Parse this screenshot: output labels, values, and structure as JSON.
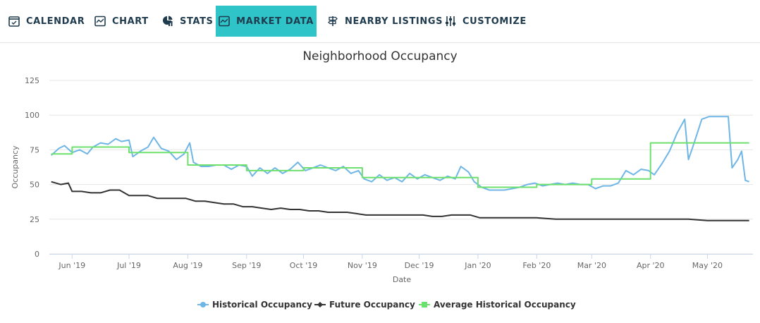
{
  "tabs": [
    {
      "label": "CALENDAR",
      "icon": "calendar-icon",
      "active": false
    },
    {
      "label": "CHART",
      "icon": "chart-icon",
      "active": false
    },
    {
      "label": "STATS",
      "icon": "stats-icon",
      "active": false
    },
    {
      "label": "MARKET DATA",
      "icon": "market-data-icon",
      "active": true
    },
    {
      "label": "NEARBY LISTINGS",
      "icon": "signpost-icon",
      "active": false
    },
    {
      "label": "CUSTOMIZE",
      "icon": "sliders-icon",
      "active": false
    }
  ],
  "colors": {
    "accent": "#2fc5c8",
    "tab_text": "#1f3b4d",
    "historical": "#6fb6e6",
    "future": "#333333",
    "average": "#6ee06e"
  },
  "chart_data": {
    "type": "line",
    "title": "Neighborhood Occupancy",
    "xlabel": "Date",
    "ylabel": "Occupancy",
    "ylim": [
      0,
      125
    ],
    "yticks": [
      0,
      25,
      50,
      75,
      100,
      125
    ],
    "xlim": [
      "2019-05-20",
      "2020-05-25"
    ],
    "xticks": [
      {
        "date": "2019-06-01",
        "label": "Jun '19"
      },
      {
        "date": "2019-07-01",
        "label": "Jul '19"
      },
      {
        "date": "2019-08-01",
        "label": "Aug '19"
      },
      {
        "date": "2019-09-01",
        "label": "Sep '19"
      },
      {
        "date": "2019-10-01",
        "label": "Oct '19"
      },
      {
        "date": "2019-11-01",
        "label": "Nov '19"
      },
      {
        "date": "2019-12-01",
        "label": "Dec '19"
      },
      {
        "date": "2020-01-01",
        "label": "Jan '20"
      },
      {
        "date": "2020-02-01",
        "label": "Feb '20"
      },
      {
        "date": "2020-03-01",
        "label": "Mar '20"
      },
      {
        "date": "2020-04-01",
        "label": "Apr '20"
      },
      {
        "date": "2020-05-01",
        "label": "May '20"
      }
    ],
    "grid": true,
    "legend_position": "bottom",
    "series": [
      {
        "name": "Historical Occupancy",
        "points": [
          [
            "2019-05-21",
            71
          ],
          [
            "2019-05-25",
            76
          ],
          [
            "2019-05-28",
            78
          ],
          [
            "2019-06-01",
            73
          ],
          [
            "2019-06-05",
            75
          ],
          [
            "2019-06-09",
            72
          ],
          [
            "2019-06-12",
            77
          ],
          [
            "2019-06-16",
            80
          ],
          [
            "2019-06-20",
            79
          ],
          [
            "2019-06-24",
            83
          ],
          [
            "2019-06-27",
            81
          ],
          [
            "2019-07-01",
            82
          ],
          [
            "2019-07-03",
            70
          ],
          [
            "2019-07-07",
            74
          ],
          [
            "2019-07-11",
            77
          ],
          [
            "2019-07-14",
            84
          ],
          [
            "2019-07-18",
            76
          ],
          [
            "2019-07-22",
            74
          ],
          [
            "2019-07-26",
            68
          ],
          [
            "2019-07-30",
            72
          ],
          [
            "2019-08-02",
            80
          ],
          [
            "2019-08-04",
            66
          ],
          [
            "2019-08-08",
            63
          ],
          [
            "2019-08-12",
            63
          ],
          [
            "2019-08-16",
            64
          ],
          [
            "2019-08-20",
            64
          ],
          [
            "2019-08-24",
            61
          ],
          [
            "2019-08-28",
            64
          ],
          [
            "2019-09-01",
            63
          ],
          [
            "2019-09-04",
            56
          ],
          [
            "2019-09-08",
            62
          ],
          [
            "2019-09-12",
            58
          ],
          [
            "2019-09-16",
            62
          ],
          [
            "2019-09-20",
            58
          ],
          [
            "2019-09-24",
            61
          ],
          [
            "2019-09-28",
            66
          ],
          [
            "2019-10-02",
            60
          ],
          [
            "2019-10-06",
            62
          ],
          [
            "2019-10-10",
            64
          ],
          [
            "2019-10-14",
            62
          ],
          [
            "2019-10-18",
            60
          ],
          [
            "2019-10-22",
            63
          ],
          [
            "2019-10-26",
            58
          ],
          [
            "2019-10-30",
            60
          ],
          [
            "2019-11-02",
            54
          ],
          [
            "2019-11-06",
            52
          ],
          [
            "2019-11-10",
            57
          ],
          [
            "2019-11-14",
            53
          ],
          [
            "2019-11-18",
            55
          ],
          [
            "2019-11-22",
            52
          ],
          [
            "2019-11-26",
            58
          ],
          [
            "2019-11-30",
            54
          ],
          [
            "2019-12-04",
            57
          ],
          [
            "2019-12-08",
            55
          ],
          [
            "2019-12-12",
            53
          ],
          [
            "2019-12-16",
            56
          ],
          [
            "2019-12-20",
            54
          ],
          [
            "2019-12-23",
            63
          ],
          [
            "2019-12-27",
            59
          ],
          [
            "2019-12-30",
            52
          ],
          [
            "2020-01-03",
            48
          ],
          [
            "2020-01-07",
            46
          ],
          [
            "2020-01-11",
            46
          ],
          [
            "2020-01-15",
            46
          ],
          [
            "2020-01-19",
            47
          ],
          [
            "2020-01-23",
            48
          ],
          [
            "2020-01-27",
            50
          ],
          [
            "2020-01-31",
            51
          ],
          [
            "2020-02-04",
            49
          ],
          [
            "2020-02-08",
            50
          ],
          [
            "2020-02-12",
            51
          ],
          [
            "2020-02-16",
            50
          ],
          [
            "2020-02-20",
            51
          ],
          [
            "2020-02-24",
            50
          ],
          [
            "2020-02-28",
            50
          ],
          [
            "2020-03-03",
            47
          ],
          [
            "2020-03-07",
            49
          ],
          [
            "2020-03-11",
            49
          ],
          [
            "2020-03-15",
            51
          ],
          [
            "2020-03-19",
            60
          ],
          [
            "2020-03-23",
            57
          ],
          [
            "2020-03-27",
            61
          ],
          [
            "2020-03-31",
            60
          ],
          [
            "2020-04-03",
            57
          ],
          [
            "2020-04-07",
            65
          ],
          [
            "2020-04-11",
            74
          ],
          [
            "2020-04-15",
            87
          ],
          [
            "2020-04-19",
            97
          ],
          [
            "2020-04-21",
            68
          ],
          [
            "2020-04-24",
            80
          ],
          [
            "2020-04-28",
            97
          ],
          [
            "2020-05-02",
            99
          ],
          [
            "2020-05-08",
            99
          ],
          [
            "2020-05-12",
            99
          ],
          [
            "2020-05-14",
            62
          ],
          [
            "2020-05-17",
            68
          ],
          [
            "2020-05-19",
            74
          ],
          [
            "2020-05-21",
            53
          ],
          [
            "2020-05-23",
            52
          ]
        ]
      },
      {
        "name": "Future Occupancy",
        "points": [
          [
            "2019-05-21",
            52
          ],
          [
            "2019-05-26",
            50
          ],
          [
            "2019-05-30",
            51
          ],
          [
            "2019-06-01",
            45
          ],
          [
            "2019-06-06",
            45
          ],
          [
            "2019-06-11",
            44
          ],
          [
            "2019-06-16",
            44
          ],
          [
            "2019-06-21",
            46
          ],
          [
            "2019-06-26",
            46
          ],
          [
            "2019-07-01",
            42
          ],
          [
            "2019-07-06",
            42
          ],
          [
            "2019-07-11",
            42
          ],
          [
            "2019-07-16",
            40
          ],
          [
            "2019-07-21",
            40
          ],
          [
            "2019-07-26",
            40
          ],
          [
            "2019-07-31",
            40
          ],
          [
            "2019-08-05",
            38
          ],
          [
            "2019-08-10",
            38
          ],
          [
            "2019-08-15",
            37
          ],
          [
            "2019-08-20",
            36
          ],
          [
            "2019-08-25",
            36
          ],
          [
            "2019-08-30",
            34
          ],
          [
            "2019-09-04",
            34
          ],
          [
            "2019-09-09",
            33
          ],
          [
            "2019-09-14",
            32
          ],
          [
            "2019-09-19",
            33
          ],
          [
            "2019-09-24",
            32
          ],
          [
            "2019-09-29",
            32
          ],
          [
            "2019-10-04",
            31
          ],
          [
            "2019-10-09",
            31
          ],
          [
            "2019-10-14",
            30
          ],
          [
            "2019-10-19",
            30
          ],
          [
            "2019-10-24",
            30
          ],
          [
            "2019-10-29",
            29
          ],
          [
            "2019-11-03",
            28
          ],
          [
            "2019-11-08",
            28
          ],
          [
            "2019-11-13",
            28
          ],
          [
            "2019-11-18",
            28
          ],
          [
            "2019-11-23",
            28
          ],
          [
            "2019-11-28",
            28
          ],
          [
            "2019-12-03",
            28
          ],
          [
            "2019-12-08",
            27
          ],
          [
            "2019-12-13",
            27
          ],
          [
            "2019-12-18",
            28
          ],
          [
            "2019-12-23",
            28
          ],
          [
            "2019-12-28",
            28
          ],
          [
            "2020-01-02",
            26
          ],
          [
            "2020-01-12",
            26
          ],
          [
            "2020-01-22",
            26
          ],
          [
            "2020-02-01",
            26
          ],
          [
            "2020-02-11",
            25
          ],
          [
            "2020-02-21",
            25
          ],
          [
            "2020-03-02",
            25
          ],
          [
            "2020-03-12",
            25
          ],
          [
            "2020-03-22",
            25
          ],
          [
            "2020-04-01",
            25
          ],
          [
            "2020-04-11",
            25
          ],
          [
            "2020-04-21",
            25
          ],
          [
            "2020-05-01",
            24
          ],
          [
            "2020-05-11",
            24
          ],
          [
            "2020-05-23",
            24
          ]
        ]
      },
      {
        "name": "Average Historical Occupancy",
        "points": [
          [
            "2019-05-21",
            72
          ],
          [
            "2019-06-01",
            72
          ],
          [
            "2019-06-01",
            77
          ],
          [
            "2019-07-01",
            77
          ],
          [
            "2019-07-01",
            73
          ],
          [
            "2019-08-01",
            73
          ],
          [
            "2019-08-01",
            64
          ],
          [
            "2019-09-01",
            64
          ],
          [
            "2019-09-01",
            60
          ],
          [
            "2019-10-01",
            60
          ],
          [
            "2019-10-01",
            62
          ],
          [
            "2019-11-01",
            62
          ],
          [
            "2019-11-01",
            55
          ],
          [
            "2019-12-01",
            55
          ],
          [
            "2019-12-01",
            55
          ],
          [
            "2020-01-01",
            55
          ],
          [
            "2020-01-01",
            48
          ],
          [
            "2020-02-01",
            48
          ],
          [
            "2020-02-01",
            50
          ],
          [
            "2020-03-01",
            50
          ],
          [
            "2020-03-01",
            54
          ],
          [
            "2020-04-01",
            54
          ],
          [
            "2020-04-01",
            80
          ],
          [
            "2020-05-23",
            80
          ]
        ]
      }
    ]
  }
}
